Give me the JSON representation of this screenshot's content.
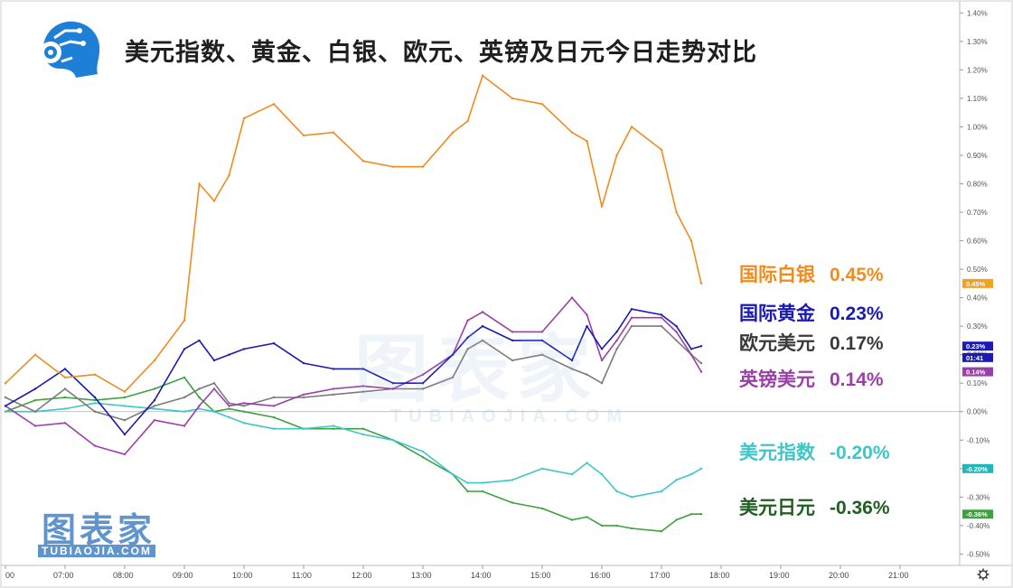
{
  "title": "美元指数、黄金、白银、欧元、英镑及日元今日走势对比",
  "watermark": {
    "name": "图表家",
    "site": "TUBIAOJIA.COM"
  },
  "legend": [
    {
      "name": "国际白银",
      "value": "0.45%",
      "color": "#f08c1e"
    },
    {
      "name": "国际黄金",
      "value": "0.23%",
      "color": "#1a1ab4"
    },
    {
      "name": "欧元美元",
      "value": "0.17%",
      "color": "#3a3a3a"
    },
    {
      "name": "英镑美元",
      "value": "0.14%",
      "color": "#9b3fa8"
    },
    {
      "name": "美元指数",
      "value": "-0.20%",
      "color": "#3ec6c8"
    },
    {
      "name": "美元日元",
      "value": "-0.36%",
      "color": "#1f5f1f"
    }
  ],
  "right_badges": [
    {
      "text": "0.45%",
      "color": "#f2a21e"
    },
    {
      "text": "0.23%",
      "color": "#1a1ab4"
    },
    {
      "text": "01:41",
      "color": "#1a1ab4"
    },
    {
      "text": "0.14%",
      "color": "#9b3fa8"
    },
    {
      "text": "-0.20%",
      "color": "#1fb7b9"
    },
    {
      "text": "-0.36%",
      "color": "#3fa03f"
    }
  ],
  "chart_data": {
    "type": "line",
    "title": "美元指数、黄金、白银、欧元、英镑及日元今日走势对比",
    "xlabel": "",
    "ylabel": "",
    "x_ticks": [
      "00",
      "07:00",
      "08:00",
      "09:00",
      "10:00",
      "11:00",
      "12:00",
      "13:00",
      "14:00",
      "15:00",
      "16:00",
      "17:00",
      "18:00",
      "19:00",
      "20:00",
      "21:00"
    ],
    "y_ticks": [
      "1.40%",
      "1.30%",
      "1.20%",
      "1.10%",
      "1.00%",
      "0.90%",
      "0.80%",
      "0.70%",
      "0.60%",
      "0.50%",
      "0.40%",
      "0.30%",
      "0.20%",
      "0.10%",
      "0.00%",
      "-0.10%",
      "-0.20%",
      "-0.30%",
      "-0.40%",
      "-0.50%"
    ],
    "ylim": [
      -0.54,
      1.42
    ],
    "xlim_hours": [
      6.0,
      22.0
    ],
    "x": [
      "06:00",
      "06:30",
      "07:00",
      "07:30",
      "08:00",
      "08:30",
      "09:00",
      "09:15",
      "09:30",
      "09:45",
      "10:00",
      "10:30",
      "11:00",
      "11:30",
      "12:00",
      "12:30",
      "13:00",
      "13:30",
      "13:45",
      "14:00",
      "14:30",
      "15:00",
      "15:30",
      "15:45",
      "16:00",
      "16:15",
      "16:30",
      "17:00",
      "17:15",
      "17:30",
      "17:40"
    ],
    "series": [
      {
        "name": "国际白银",
        "color": "#f08c1e",
        "values": [
          0.1,
          0.2,
          0.12,
          0.13,
          0.07,
          0.18,
          0.32,
          0.8,
          0.74,
          0.83,
          1.03,
          1.08,
          0.97,
          0.98,
          0.88,
          0.86,
          0.86,
          0.98,
          1.02,
          1.18,
          1.1,
          1.08,
          0.98,
          0.95,
          0.72,
          0.9,
          1.0,
          0.92,
          0.7,
          0.6,
          0.45
        ]
      },
      {
        "name": "国际黄金",
        "color": "#1a1ab4",
        "values": [
          0.02,
          0.08,
          0.15,
          0.05,
          -0.08,
          0.04,
          0.22,
          0.25,
          0.18,
          0.2,
          0.22,
          0.24,
          0.17,
          0.15,
          0.15,
          0.1,
          0.1,
          0.2,
          0.26,
          0.3,
          0.25,
          0.25,
          0.18,
          0.3,
          0.22,
          0.28,
          0.36,
          0.34,
          0.3,
          0.22,
          0.23
        ]
      },
      {
        "name": "欧元美元",
        "color": "#7a7a7a",
        "values": [
          0.05,
          0.0,
          0.08,
          0.0,
          -0.03,
          0.02,
          0.05,
          0.08,
          0.1,
          0.03,
          0.02,
          0.05,
          0.05,
          0.06,
          0.07,
          0.08,
          0.08,
          0.12,
          0.22,
          0.25,
          0.18,
          0.2,
          0.15,
          0.13,
          0.1,
          0.22,
          0.3,
          0.3,
          0.25,
          0.2,
          0.17
        ]
      },
      {
        "name": "英镑美元",
        "color": "#9b3fa8",
        "values": [
          0.02,
          -0.05,
          -0.04,
          -0.12,
          -0.15,
          -0.03,
          -0.05,
          0.02,
          0.08,
          0.02,
          0.03,
          0.02,
          0.06,
          0.08,
          0.09,
          0.08,
          0.13,
          0.2,
          0.32,
          0.35,
          0.28,
          0.28,
          0.4,
          0.34,
          0.18,
          0.25,
          0.33,
          0.33,
          0.28,
          0.2,
          0.14
        ]
      },
      {
        "name": "美元指数",
        "color": "#3ec6c8",
        "values": [
          0.0,
          0.0,
          0.01,
          0.03,
          0.02,
          0.01,
          0.0,
          0.01,
          0.0,
          -0.02,
          -0.04,
          -0.06,
          -0.06,
          -0.05,
          -0.08,
          -0.1,
          -0.14,
          -0.22,
          -0.25,
          -0.25,
          -0.24,
          -0.2,
          -0.22,
          -0.18,
          -0.22,
          -0.28,
          -0.3,
          -0.28,
          -0.24,
          -0.22,
          -0.2
        ]
      },
      {
        "name": "美元日元",
        "color": "#3fa03f",
        "values": [
          0.0,
          0.04,
          0.05,
          0.04,
          0.05,
          0.08,
          0.12,
          0.05,
          0.0,
          0.01,
          0.0,
          -0.02,
          -0.06,
          -0.06,
          -0.06,
          -0.1,
          -0.16,
          -0.22,
          -0.28,
          -0.28,
          -0.32,
          -0.34,
          -0.38,
          -0.37,
          -0.4,
          -0.4,
          -0.41,
          -0.42,
          -0.38,
          -0.36,
          -0.36
        ]
      }
    ]
  }
}
